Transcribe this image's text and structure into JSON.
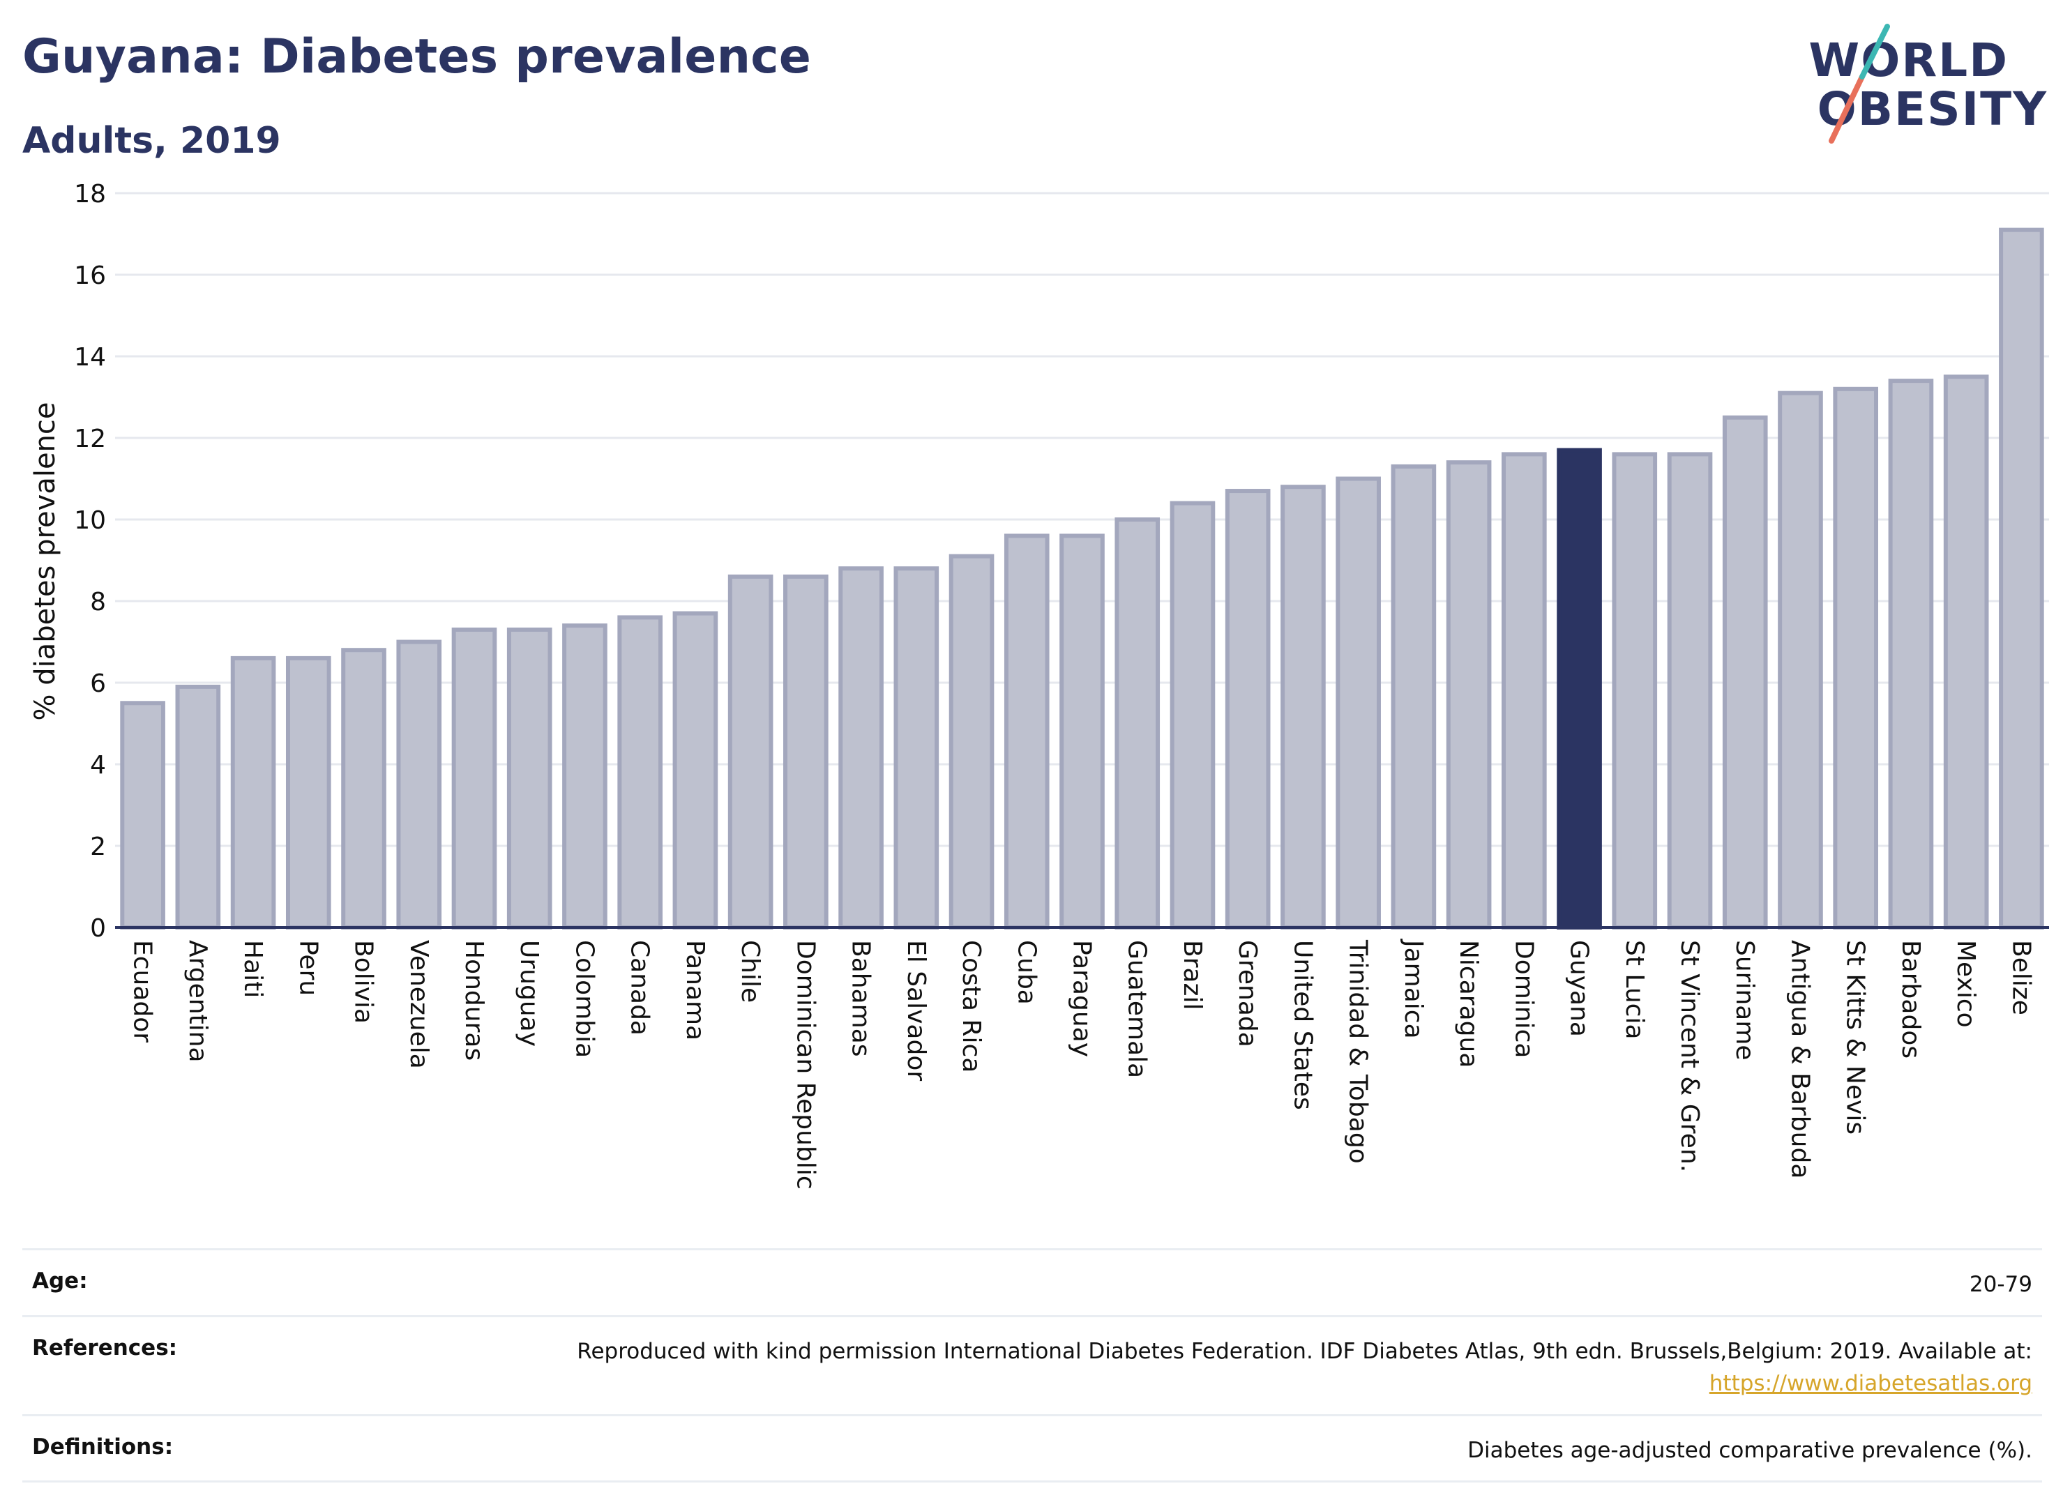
{
  "title": "Guyana: Diabetes prevalence",
  "subtitle": "Adults, 2019",
  "logo": {
    "line1": "WORLD",
    "line2": "OBESITY"
  },
  "colors": {
    "title": "#2b3462",
    "bar": "#bec1cf",
    "bar_stroke": "#a3a7bd",
    "highlight": "#2b3462",
    "grid": "#e6e8ee",
    "link": "#d6a52a",
    "logo_slash_red": "#e8705b",
    "logo_slash_teal": "#3cb7b3"
  },
  "chart_data": {
    "type": "bar",
    "ylabel": "% diabetes prevalence",
    "ylim": [
      0,
      18
    ],
    "yticks": [
      0,
      2,
      4,
      6,
      8,
      10,
      12,
      14,
      16,
      18
    ],
    "grid": true,
    "highlight": "Guyana",
    "categories": [
      "Ecuador",
      "Argentina",
      "Haiti",
      "Peru",
      "Bolivia",
      "Venezuela",
      "Honduras",
      "Uruguay",
      "Colombia",
      "Canada",
      "Panama",
      "Chile",
      "Dominican Republic",
      "Bahamas",
      "El Salvador",
      "Costa Rica",
      "Cuba",
      "Paraguay",
      "Guatemala",
      "Brazil",
      "Grenada",
      "United States",
      "Trinidad & Tobago",
      "Jamaica",
      "Nicaragua",
      "Dominica",
      "Guyana",
      "St Lucia",
      "St Vincent & Gren.",
      "Suriname",
      "Antigua & Barbuda",
      "St Kitts & Nevis",
      "Barbados",
      "Mexico",
      "Belize"
    ],
    "values": [
      5.5,
      5.9,
      6.6,
      6.6,
      6.8,
      7.0,
      7.3,
      7.3,
      7.4,
      7.6,
      7.7,
      8.6,
      8.6,
      8.8,
      8.8,
      9.1,
      9.6,
      9.6,
      10.0,
      10.4,
      10.7,
      10.8,
      11.0,
      11.3,
      11.4,
      11.6,
      11.7,
      11.6,
      11.6,
      12.5,
      13.1,
      13.2,
      13.4,
      13.5,
      17.1
    ]
  },
  "info": {
    "age_label": "Age:",
    "age_value": "20-79",
    "references_label": "References:",
    "references_text": "Reproduced with kind permission International Diabetes Federation. IDF Diabetes Atlas, 9th edn. Brussels,Belgium: 2019. Available at:",
    "references_link": "https://www.diabetesatlas.org",
    "definitions_label": "Definitions:",
    "definitions_value": "Diabetes age-adjusted comparative prevalence (%)."
  }
}
